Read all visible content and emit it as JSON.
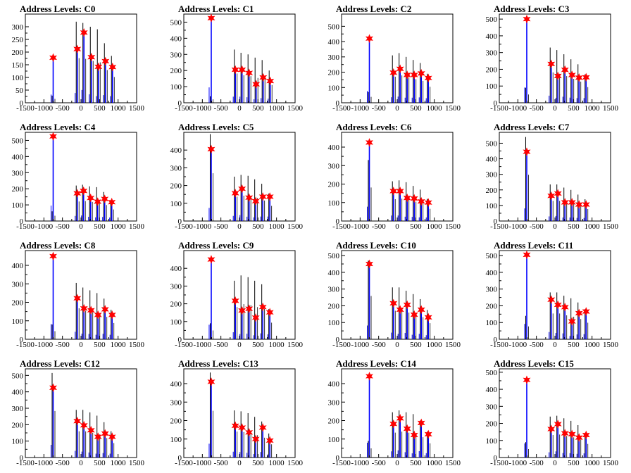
{
  "chart_data": {
    "type": "bar",
    "xlim": [
      -1500,
      1500
    ],
    "x_ticks": [
      -1500,
      -1000,
      -500,
      0,
      500,
      1000,
      1500
    ],
    "x_tick_labels": [
      "-1500",
      "-1000",
      "-500",
      "0",
      "500",
      "1000",
      "1500"
    ],
    "colors": {
      "histogram": "#0000ff",
      "overlay": "#000000",
      "marker": "#ff0000",
      "axis": "#000000"
    },
    "panels": [
      {
        "title": "Address Levels: C0",
        "ylim": [
          0,
          350
        ],
        "yticks": [
          0,
          50,
          100,
          150,
          200,
          250,
          300
        ],
        "peaks_x": [
          -750,
          -100,
          80,
          280,
          470,
          660,
          850
        ],
        "blue": [
          180,
          215,
          280,
          185,
          145,
          168,
          145
        ],
        "black": [
          28,
          320,
          315,
          300,
          290,
          235,
          185
        ],
        "markers": [
          178,
          212,
          277,
          180,
          142,
          164,
          141
        ]
      },
      {
        "title": "Address Levels: C1",
        "ylim": [
          0,
          550
        ],
        "yticks": [
          0,
          100,
          200,
          300,
          400,
          500
        ],
        "peaks_x": [
          -760,
          -110,
          70,
          260,
          450,
          640,
          830
        ],
        "blue": [
          530,
          210,
          210,
          190,
          120,
          160,
          140
        ],
        "black": [
          40,
          330,
          310,
          300,
          280,
          265,
          200
        ],
        "markers": [
          525,
          205,
          205,
          185,
          115,
          157,
          135
        ]
      },
      {
        "title": "Address Levels: C2",
        "ylim": [
          0,
          580
        ],
        "yticks": [
          0,
          100,
          200,
          300,
          400,
          500
        ],
        "peaks_x": [
          -750,
          -100,
          80,
          270,
          460,
          650,
          840
        ],
        "blue": [
          425,
          200,
          225,
          185,
          185,
          195,
          165
        ],
        "black": [
          70,
          310,
          325,
          300,
          280,
          260,
          190
        ],
        "markers": [
          420,
          197,
          222,
          182,
          182,
          192,
          162
        ]
      },
      {
        "title": "Address Levels: C3",
        "ylim": [
          0,
          530
        ],
        "yticks": [
          0,
          100,
          200,
          300,
          400,
          500
        ],
        "peaks_x": [
          -760,
          -100,
          80,
          270,
          460,
          650,
          840
        ],
        "blue": [
          505,
          235,
          165,
          200,
          170,
          155,
          155
        ],
        "black": [
          90,
          330,
          315,
          290,
          260,
          230,
          170
        ],
        "markers": [
          500,
          232,
          160,
          197,
          166,
          150,
          152
        ]
      },
      {
        "title": "Address Levels: C4",
        "ylim": [
          0,
          550
        ],
        "yticks": [
          0,
          100,
          200,
          300,
          400,
          500
        ],
        "peaks_x": [
          -750,
          -100,
          70,
          260,
          450,
          640,
          830
        ],
        "blue": [
          530,
          175,
          190,
          145,
          125,
          140,
          120
        ],
        "black": [
          60,
          220,
          225,
          215,
          210,
          180,
          130
        ],
        "markers": [
          525,
          172,
          187,
          143,
          120,
          137,
          117
        ]
      },
      {
        "title": "Address Levels: C5",
        "ylim": [
          0,
          500
        ],
        "yticks": [
          0,
          100,
          200,
          300,
          400
        ],
        "peaks_x": [
          -760,
          -110,
          70,
          260,
          440,
          630,
          820
        ],
        "blue": [
          410,
          160,
          185,
          135,
          115,
          140,
          140
        ],
        "black": [
          490,
          250,
          260,
          255,
          235,
          210,
          155
        ],
        "markers": [
          405,
          157,
          182,
          132,
          112,
          137,
          137
        ]
      },
      {
        "title": "Address Levels: C6",
        "ylim": [
          0,
          480
        ],
        "yticks": [
          0,
          100,
          200,
          300,
          400
        ],
        "peaks_x": [
          -750,
          -100,
          80,
          270,
          460,
          650,
          840
        ],
        "blue": [
          430,
          165,
          165,
          130,
          125,
          110,
          105
        ],
        "black": [
          330,
          215,
          220,
          210,
          190,
          170,
          120
        ],
        "markers": [
          425,
          162,
          162,
          125,
          122,
          106,
          100
        ]
      },
      {
        "title": "Address Levels: C7",
        "ylim": [
          0,
          570
        ],
        "yticks": [
          0,
          100,
          200,
          300,
          400,
          500
        ],
        "peaks_x": [
          -760,
          -100,
          80,
          270,
          460,
          650,
          840
        ],
        "blue": [
          450,
          165,
          180,
          125,
          125,
          110,
          110
        ],
        "black": [
          540,
          235,
          235,
          215,
          200,
          170,
          140
        ],
        "markers": [
          445,
          162,
          177,
          120,
          120,
          106,
          106
        ]
      },
      {
        "title": "Address Levels: C8",
        "ylim": [
          0,
          480
        ],
        "yticks": [
          0,
          100,
          200,
          300,
          400
        ],
        "peaks_x": [
          -750,
          -100,
          80,
          270,
          460,
          650,
          840
        ],
        "blue": [
          455,
          225,
          170,
          160,
          135,
          165,
          135
        ],
        "black": [
          80,
          305,
          280,
          265,
          250,
          220,
          160
        ],
        "markers": [
          450,
          222,
          167,
          157,
          132,
          162,
          132
        ]
      },
      {
        "title": "Address Levels: C9",
        "ylim": [
          0,
          500
        ],
        "yticks": [
          0,
          100,
          200,
          300,
          400
        ],
        "peaks_x": [
          -760,
          -110,
          70,
          260,
          440,
          630,
          820
        ],
        "blue": [
          455,
          220,
          165,
          175,
          125,
          185,
          155
        ],
        "black": [
          90,
          330,
          360,
          350,
          330,
          310,
          170
        ],
        "markers": [
          450,
          217,
          162,
          172,
          122,
          182,
          152
        ]
      },
      {
        "title": "Address Levels: C10",
        "ylim": [
          0,
          530
        ],
        "yticks": [
          0,
          100,
          200,
          300,
          400,
          500
        ],
        "peaks_x": [
          -750,
          -100,
          80,
          270,
          460,
          650,
          840
        ],
        "blue": [
          455,
          220,
          180,
          210,
          150,
          180,
          135
        ],
        "black": [
          470,
          310,
          310,
          290,
          270,
          240,
          175
        ],
        "markers": [
          450,
          215,
          177,
          206,
          147,
          177,
          131
        ]
      },
      {
        "title": "Address Levels: C11",
        "ylim": [
          0,
          530
        ],
        "yticks": [
          0,
          100,
          200,
          300,
          400,
          500
        ],
        "peaks_x": [
          -760,
          -100,
          80,
          270,
          460,
          650,
          840
        ],
        "blue": [
          510,
          240,
          210,
          195,
          110,
          160,
          170
        ],
        "black": [
          140,
          280,
          280,
          260,
          245,
          220,
          180
        ],
        "markers": [
          505,
          237,
          206,
          192,
          107,
          156,
          166
        ]
      },
      {
        "title": "Address Levels: C12",
        "ylim": [
          0,
          540
        ],
        "yticks": [
          0,
          100,
          200,
          300,
          400,
          500
        ],
        "peaks_x": [
          -750,
          -100,
          80,
          270,
          460,
          650,
          840
        ],
        "blue": [
          430,
          225,
          200,
          170,
          130,
          150,
          130
        ],
        "black": [
          515,
          290,
          290,
          275,
          255,
          215,
          160
        ],
        "markers": [
          425,
          222,
          196,
          166,
          126,
          146,
          126
        ]
      },
      {
        "title": "Address Levels: C13",
        "ylim": [
          0,
          480
        ],
        "yticks": [
          0,
          100,
          200,
          300,
          400
        ],
        "peaks_x": [
          -760,
          -110,
          70,
          260,
          440,
          630,
          820
        ],
        "blue": [
          415,
          175,
          165,
          140,
          105,
          165,
          95
        ],
        "black": [
          460,
          255,
          250,
          240,
          220,
          195,
          130
        ],
        "markers": [
          410,
          172,
          162,
          136,
          100,
          162,
          92
        ]
      },
      {
        "title": "Address Levels: C14",
        "ylim": [
          0,
          480
        ],
        "yticks": [
          0,
          100,
          200,
          300,
          400
        ],
        "peaks_x": [
          -750,
          -100,
          80,
          270,
          460,
          650,
          840
        ],
        "blue": [
          445,
          185,
          215,
          160,
          125,
          190,
          130
        ],
        "black": [
          90,
          245,
          255,
          245,
          235,
          200,
          140
        ],
        "markers": [
          440,
          182,
          212,
          156,
          122,
          187,
          126
        ]
      },
      {
        "title": "Address Levels: C15",
        "ylim": [
          0,
          520
        ],
        "yticks": [
          0,
          100,
          200,
          300,
          400,
          500
        ],
        "peaks_x": [
          -760,
          -100,
          80,
          270,
          460,
          650,
          840
        ],
        "blue": [
          460,
          170,
          200,
          145,
          140,
          120,
          135
        ],
        "black": [
          90,
          240,
          245,
          230,
          215,
          190,
          145
        ],
        "markers": [
          455,
          167,
          196,
          142,
          137,
          117,
          132
        ]
      }
    ]
  }
}
